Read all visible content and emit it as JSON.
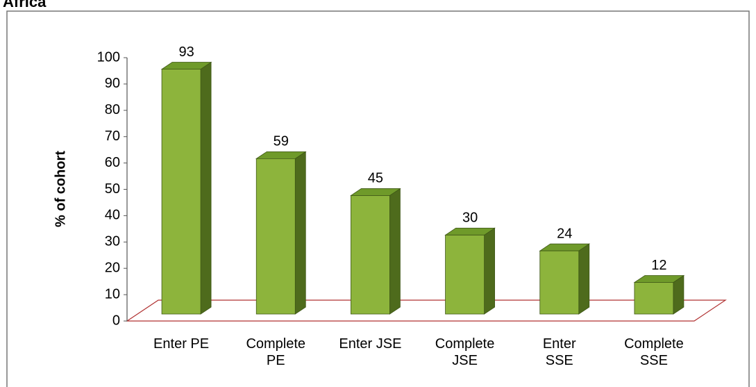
{
  "chart_data": {
    "type": "bar3d",
    "title": "Africa",
    "ylabel": "% of cohort",
    "categories": [
      "Enter PE",
      "Complete\nPE",
      "Enter JSE",
      "Complete\nJSE",
      "Enter\nSSE",
      "Complete\nSSE"
    ],
    "values": [
      93,
      59,
      45,
      30,
      24,
      12
    ],
    "color": "#8db43c",
    "ylim": [
      0,
      100
    ],
    "yticks": [
      0,
      10,
      20,
      30,
      40,
      50,
      60,
      70,
      80,
      90,
      100
    ],
    "grid": false
  }
}
